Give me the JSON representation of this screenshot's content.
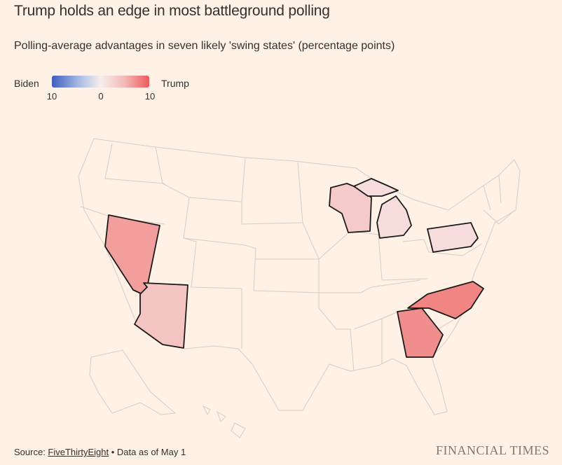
{
  "title": "Trump holds an edge in most battleground polling",
  "subtitle": "Polling-average advantages in seven likely 'swing states' (percentage points)",
  "legend": {
    "left_label": "Biden",
    "right_label": "Trump",
    "ticks": [
      "10",
      "0",
      "10"
    ],
    "colors": {
      "biden": "#3F5FBF",
      "neutral": "#F7EEEA",
      "trump": "#EE5A5C"
    }
  },
  "footer": {
    "source_prefix": "Source: ",
    "source_name": "FiveThirtyEight",
    "source_suffix": " • Data as of May 1"
  },
  "brand": "FINANCIAL TIMES",
  "chart_data": {
    "type": "choropleth",
    "region": "United States",
    "scale": {
      "min": -10,
      "max": 10,
      "negative_label": "Biden",
      "positive_label": "Trump"
    },
    "highlighted_states": [
      {
        "state": "Nevada",
        "color": "#F19E9C",
        "approx_trump_margin": 5
      },
      {
        "state": "Arizona",
        "color": "#F4C4C2",
        "approx_trump_margin": 3
      },
      {
        "state": "Wisconsin",
        "color": "#F4CBCA",
        "approx_trump_margin": 2
      },
      {
        "state": "Michigan",
        "color": "#F6DCDB",
        "approx_trump_margin": 1
      },
      {
        "state": "Pennsylvania",
        "color": "#F6DCDB",
        "approx_trump_margin": 1
      },
      {
        "state": "North Carolina",
        "color": "#F08584",
        "approx_trump_margin": 6
      },
      {
        "state": "Georgia",
        "color": "#F08E8D",
        "approx_trump_margin": 6
      }
    ]
  }
}
